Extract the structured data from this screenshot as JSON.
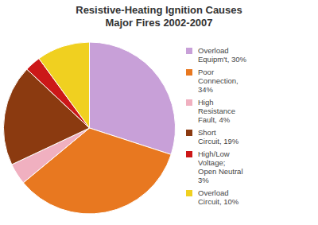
{
  "chart_data": {
    "type": "pie",
    "title": "Resistive-Heating Ignition Causes\nMajor Fires 2002-2007",
    "categories": [
      "Overload\nEquipm't, 30%",
      "Poor\nConnection,\n34%",
      "High\nResistance\nFault, 4%",
      "Short\nCircuit, 19%",
      "High/Low\nVoltage;\nOpen Neutral\n3%",
      "Overload\nCircuit, 10%"
    ],
    "values": [
      30,
      34,
      4,
      19,
      3,
      10
    ],
    "colors": [
      "#C8A0D8",
      "#E87820",
      "#F0B0C0",
      "#8B3A10",
      "#CC1818",
      "#F0D020"
    ],
    "legend": "right"
  }
}
